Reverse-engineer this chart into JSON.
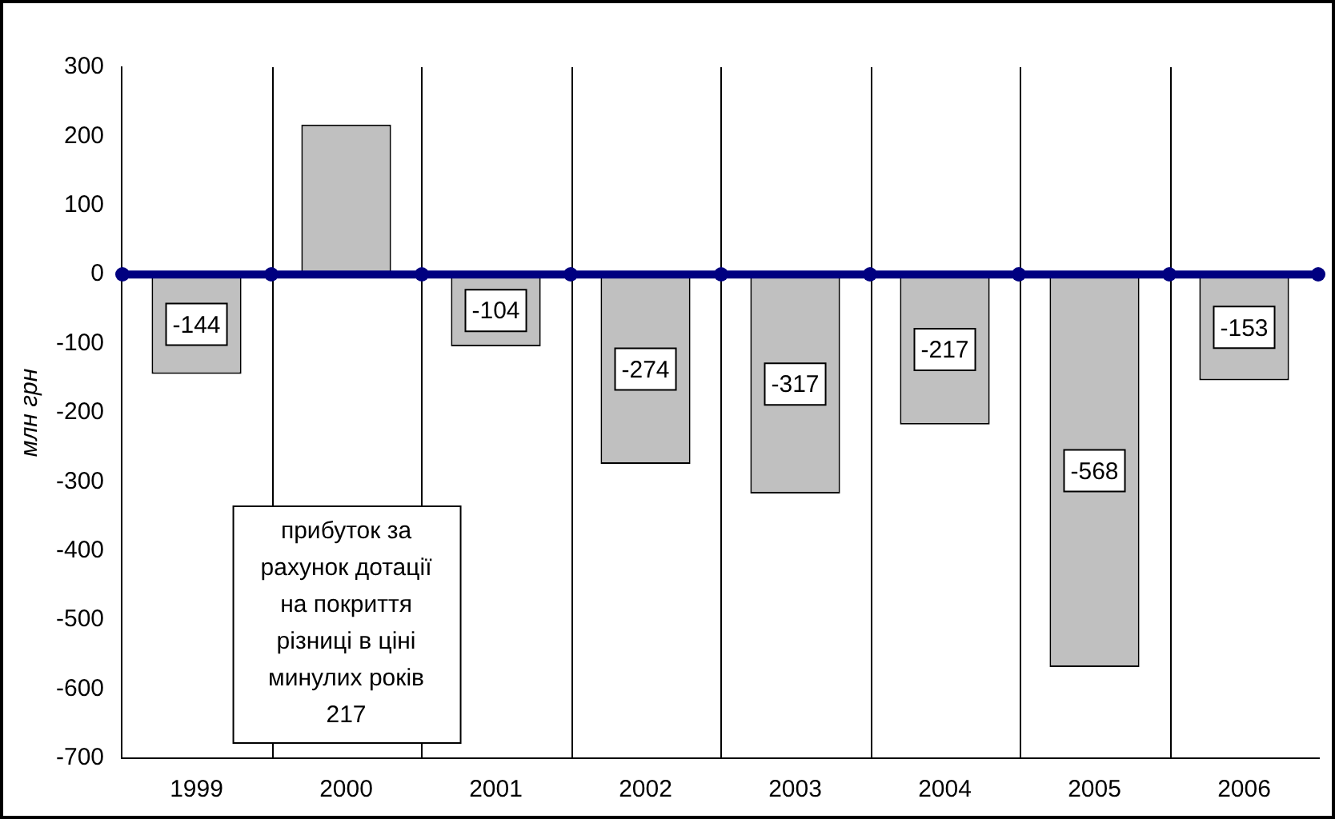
{
  "chart_data": {
    "type": "bar",
    "ylabel": "млн грн",
    "categories": [
      "1999",
      "2000",
      "2001",
      "2002",
      "2003",
      "2004",
      "2005",
      "2006"
    ],
    "values": [
      -144,
      217,
      -104,
      -274,
      -317,
      -217,
      -568,
      -153
    ],
    "value_labels": [
      "-144",
      null,
      "-104",
      "-274",
      "-317",
      "-217",
      "-568",
      "-153"
    ],
    "color": "#c0c0c0",
    "ylim": [
      -700,
      300
    ],
    "yticks": [
      -700,
      -600,
      -500,
      -400,
      -300,
      -200,
      -100,
      0,
      100,
      200,
      300
    ],
    "grid": "x",
    "legend": false,
    "ref_lines": [
      {
        "axis": "y",
        "value": 0,
        "color": "#000080"
      }
    ],
    "annotations": [
      "прибуток за рахунок дотації на покриття різниці в ціні минулих років 217"
    ]
  }
}
